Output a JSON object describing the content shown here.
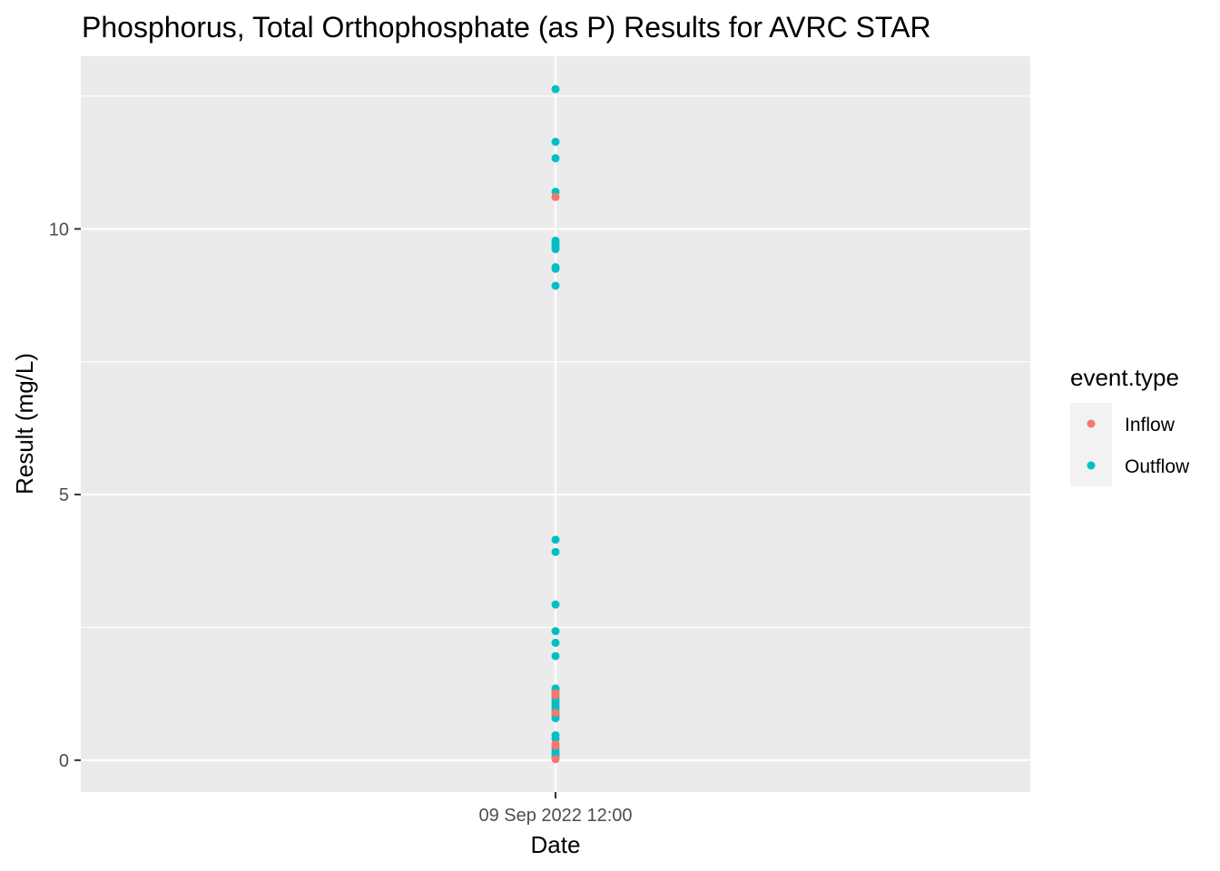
{
  "chart_data": {
    "type": "scatter",
    "title": "Phosphorus, Total Orthophosphate (as P) Results for AVRC STAR",
    "xlabel": "Date",
    "ylabel": "Result (mg/L)",
    "x_tick_labels": [
      "09 Sep 2022 12:00"
    ],
    "y_ticks": [
      0,
      5,
      10
    ],
    "ylim": [
      -0.6,
      13.25
    ],
    "grid": true,
    "legend": {
      "title": "event.type",
      "position": "right",
      "entries": [
        {
          "label": "Inflow",
          "color": "#F8766D"
        },
        {
          "label": "Outflow",
          "color": "#00BFC4"
        }
      ]
    },
    "series": [
      {
        "name": "Outflow",
        "color": "#00BFC4",
        "x": "09 Sep 2022 12:00",
        "values": [
          12.63,
          11.64,
          11.33,
          10.7,
          9.78,
          9.72,
          9.67,
          9.62,
          9.28,
          9.25,
          8.93,
          4.15,
          3.92,
          2.93,
          2.43,
          2.21,
          1.96,
          1.35,
          1.3,
          1.18,
          1.12,
          1.06,
          1.01,
          0.95,
          0.9,
          0.85,
          0.79,
          0.47,
          0.4,
          0.22,
          0.15,
          0.1,
          0.06
        ]
      },
      {
        "name": "Inflow",
        "color": "#F8766D",
        "x": "09 Sep 2022 12:00",
        "values": [
          10.6,
          1.26,
          1.22,
          0.89,
          0.3,
          0.27,
          0.02
        ]
      }
    ]
  },
  "colors": {
    "panel_background": "#EBEBEB",
    "grid_major": "#FFFFFF",
    "tick_color": "#333333"
  }
}
